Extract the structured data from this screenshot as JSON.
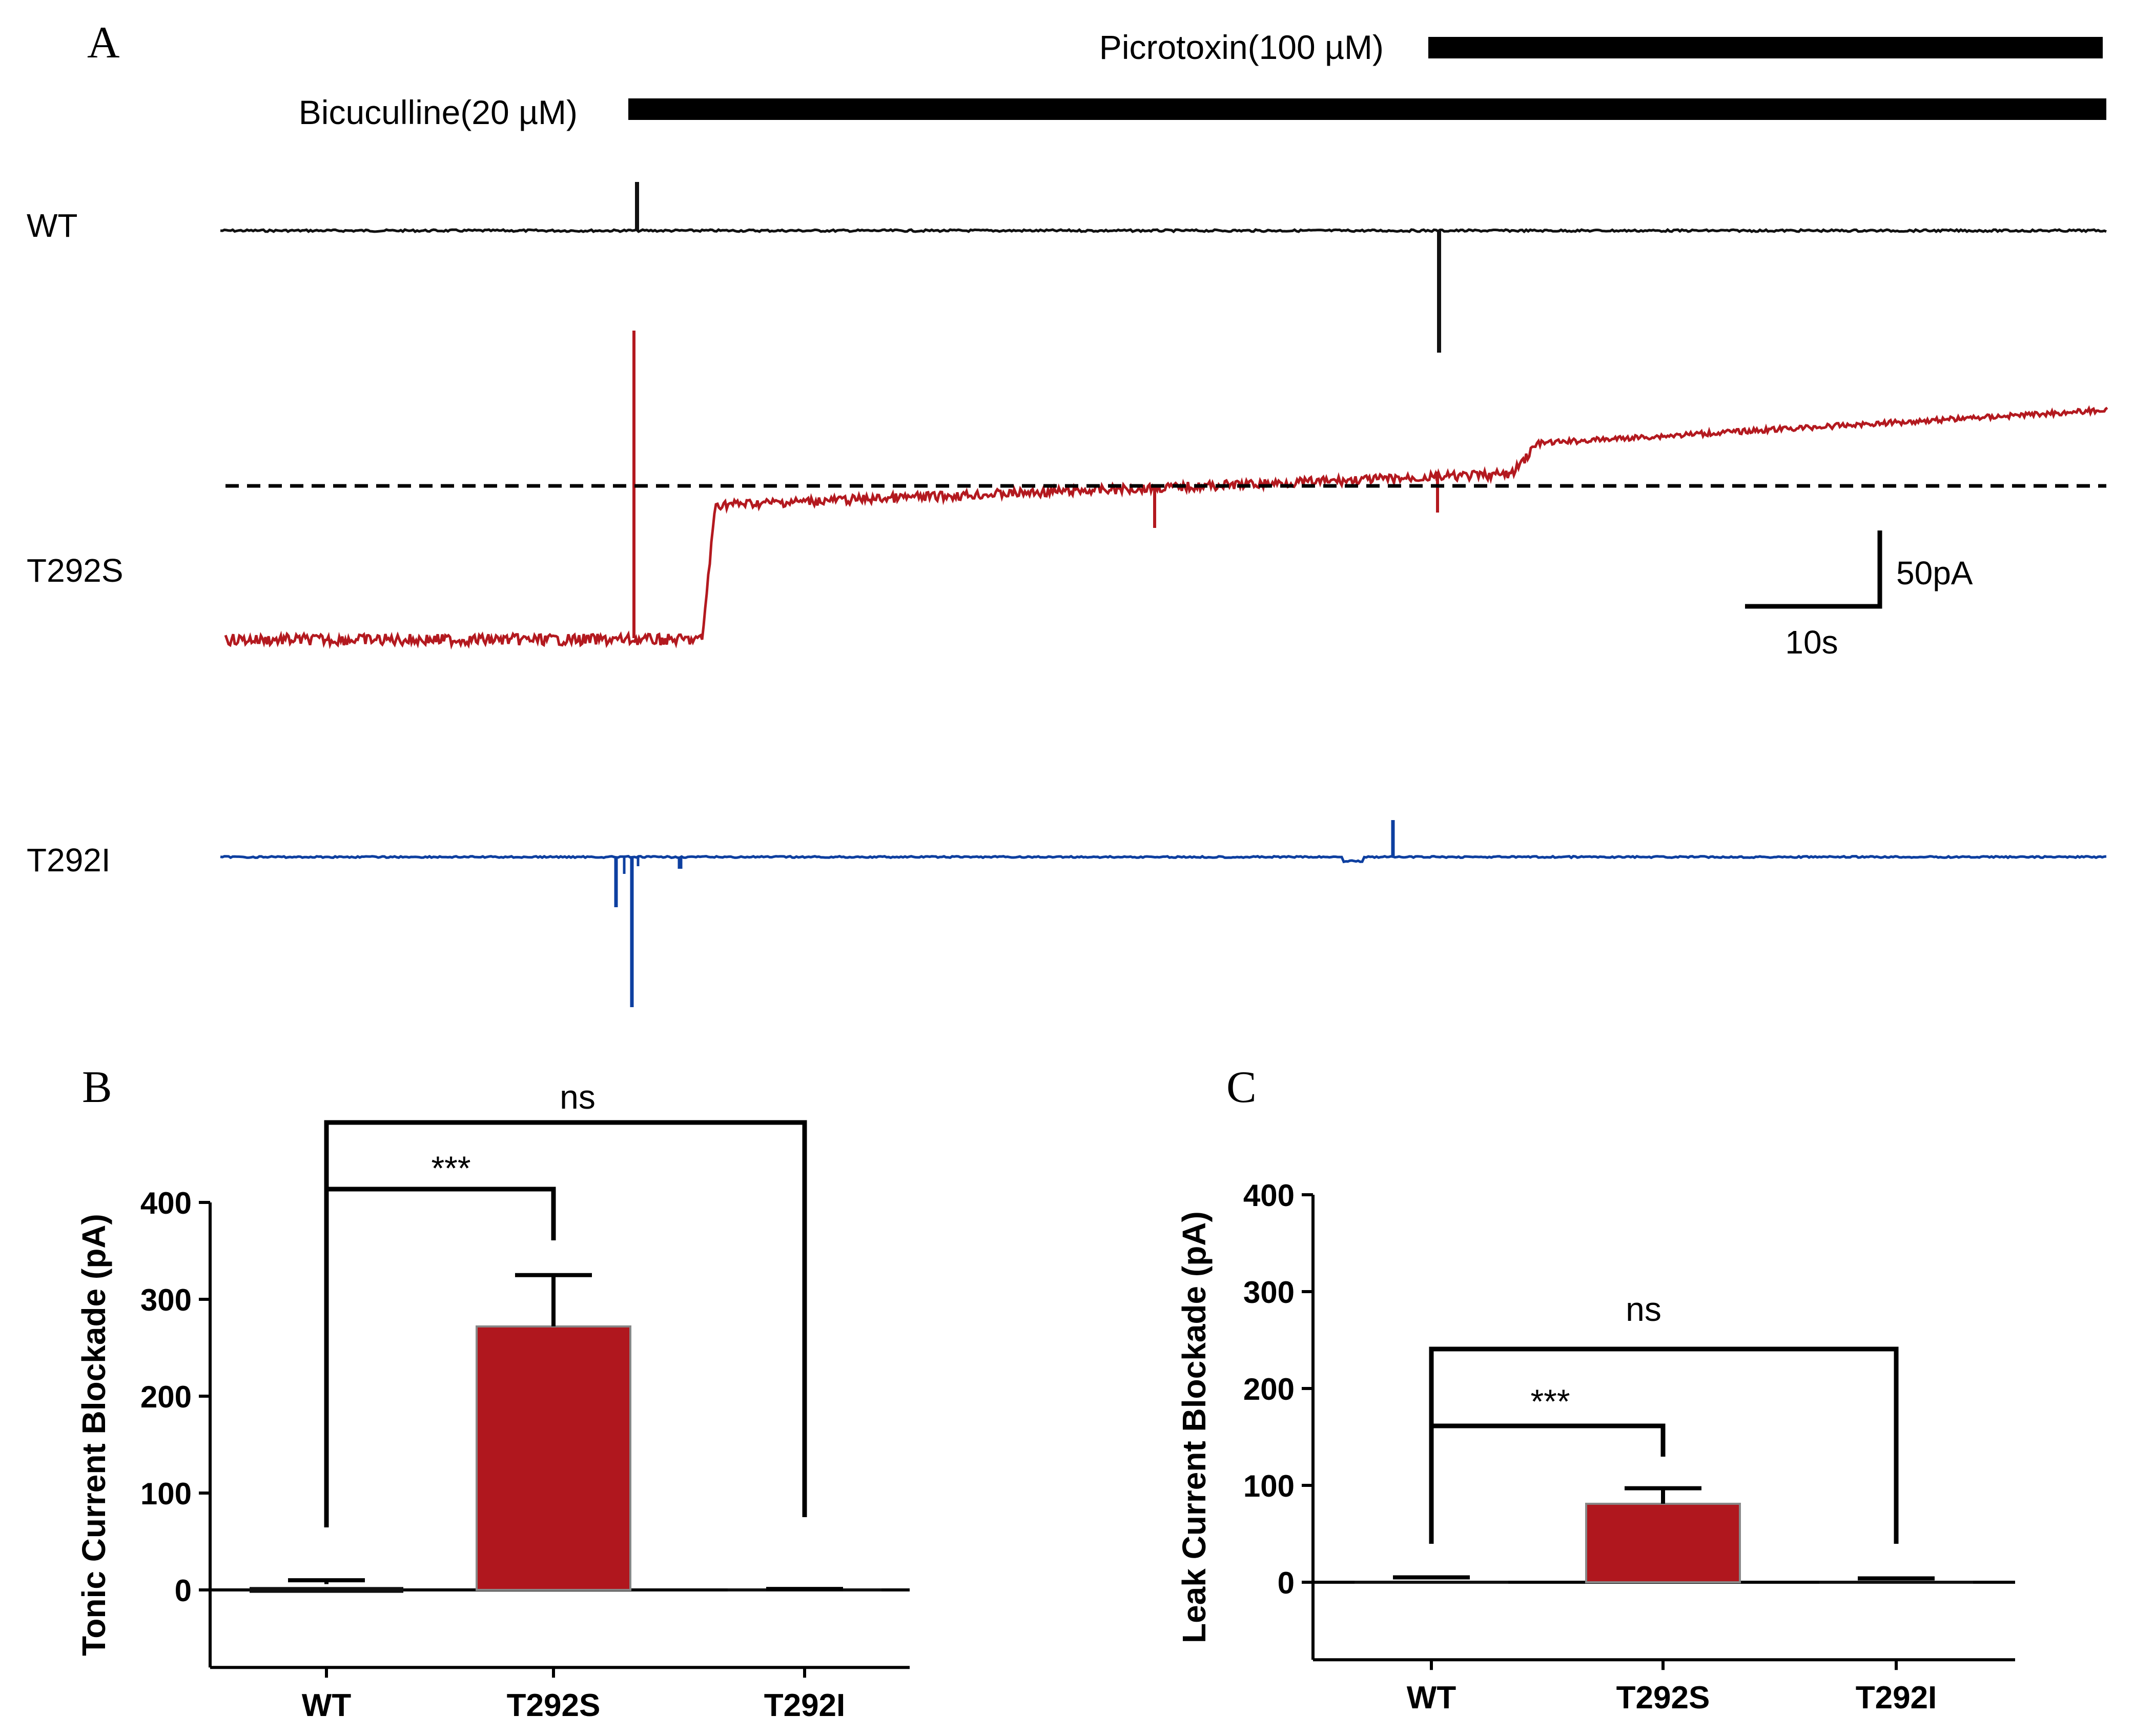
{
  "panel_a": {
    "label": "A",
    "drugs": [
      {
        "name": "Picrotoxin(100 µM)",
        "start_s": 81,
        "end_s": 136
      },
      {
        "name": "Bicuculline(20 µM)",
        "start_s": 16,
        "end_s": 136
      }
    ],
    "scale_bar": {
      "current_label": "50pA",
      "time_label": "10s"
    },
    "traces": [
      {
        "name": "WT",
        "color": "#111111"
      },
      {
        "name": "T292S",
        "color": "#b3191f"
      },
      {
        "name": "T292I",
        "color": "#0d3fa0"
      }
    ]
  },
  "chart_data": [
    {
      "type": "bar",
      "panel": "B",
      "title": "",
      "xlabel": "",
      "ylabel": "Tonic Current Blockade (pA)",
      "categories": [
        "WT",
        "T292S",
        "T292I"
      ],
      "values": [
        6,
        272,
        -3
      ],
      "errors": [
        4,
        53,
        1
      ],
      "ylim": [
        -80,
        400
      ],
      "yticks": [
        0,
        100,
        200,
        300,
        400
      ],
      "colors": [
        "#111111",
        "#b0171e",
        "#111111"
      ],
      "significance": [
        {
          "from": "WT",
          "to": "T292S",
          "label": "***"
        },
        {
          "from": "WT",
          "to": "T292I",
          "label": "ns"
        }
      ]
    },
    {
      "type": "bar",
      "panel": "C",
      "title": "",
      "xlabel": "",
      "ylabel": "Leak Current Blockade (pA)",
      "categories": [
        "WT",
        "T292S",
        "T292I"
      ],
      "values": [
        3,
        81,
        2
      ],
      "errors": [
        2,
        16,
        2
      ],
      "ylim": [
        -80,
        400
      ],
      "yticks": [
        0,
        100,
        200,
        300,
        400
      ],
      "colors": [
        "#111111",
        "#b0171e",
        "#111111"
      ],
      "significance": [
        {
          "from": "WT",
          "to": "T292S",
          "label": "***"
        },
        {
          "from": "WT",
          "to": "T292I",
          "label": "ns"
        }
      ]
    }
  ]
}
